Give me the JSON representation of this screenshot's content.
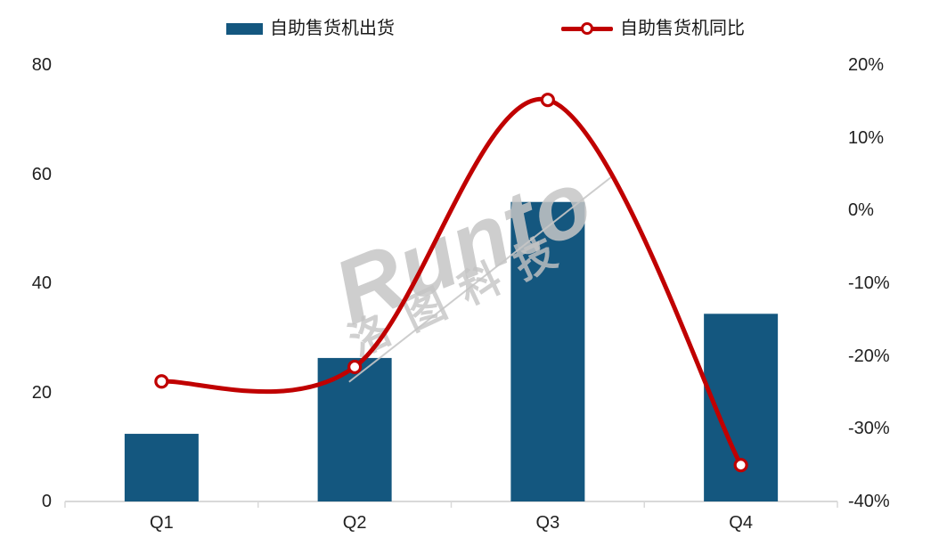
{
  "chart_data": {
    "type": "bar",
    "subtype": "combo-bar-line",
    "title": "",
    "categories": [
      "Q1",
      "Q2",
      "Q3",
      "Q4"
    ],
    "series": [
      {
        "name": "自助售货机出货",
        "chart": "bar",
        "axis": "left",
        "color": "#14577F",
        "values": [
          12.4,
          26.3,
          54.9,
          34.4
        ]
      },
      {
        "name": "自助售货机同比",
        "chart": "line",
        "axis": "right",
        "color": "#C00000",
        "marker": "open-circle",
        "values_pct": [
          -23.5,
          -21.5,
          15.2,
          -35.0
        ]
      }
    ],
    "left_axis": {
      "tick_labels": [
        "80",
        "60",
        "40",
        "20",
        "0"
      ],
      "min": 0,
      "max": 80
    },
    "right_axis": {
      "tick_labels": [
        "20%",
        "10%",
        "0%",
        "-10%",
        "-20%",
        "-30%",
        "-40%"
      ],
      "min_pct": -40,
      "max_pct": 20
    },
    "grid": false,
    "legend_position": "top"
  },
  "legend": {
    "bar_label": "自助售货机出货",
    "line_label": "自助售货机同比"
  },
  "watermark": {
    "brand": "Runto",
    "cn": "洛图科技"
  },
  "colors": {
    "bar": "#14577F",
    "line": "#C00000",
    "axis_line": "#D9D9D9",
    "text": "#212121",
    "watermark": "#C6C6C6"
  }
}
